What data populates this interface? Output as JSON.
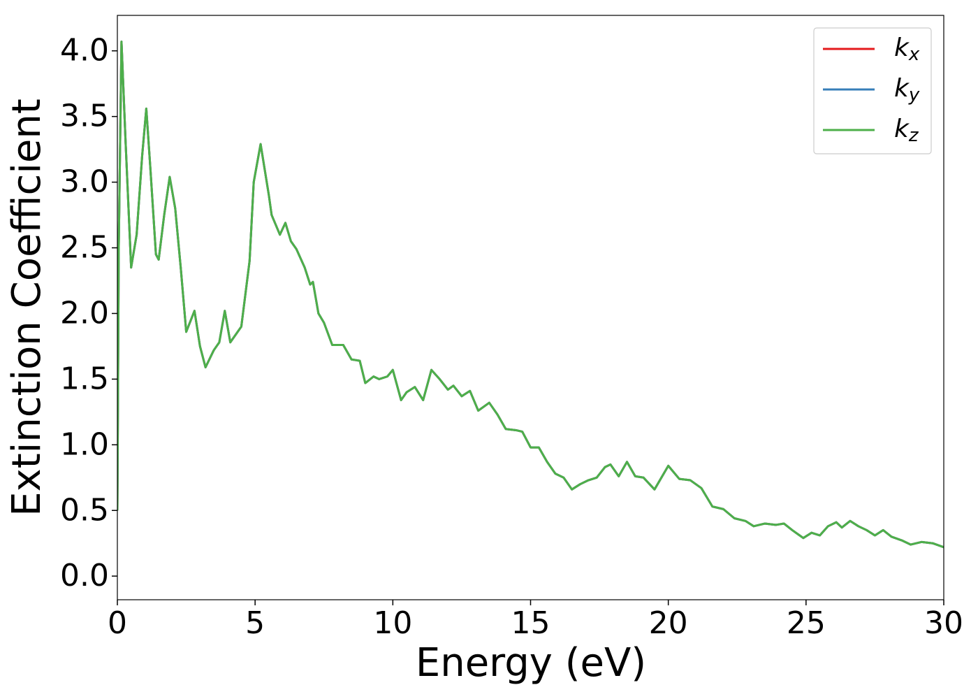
{
  "chart_data": {
    "type": "line",
    "xlabel": "Energy (eV)",
    "ylabel": "Extinction Coefficient",
    "x": [
      0,
      0.05,
      0.15,
      0.3,
      0.5,
      0.7,
      0.9,
      1.05,
      1.2,
      1.4,
      1.5,
      1.7,
      1.9,
      2.1,
      2.3,
      2.5,
      2.8,
      3.0,
      3.2,
      3.5,
      3.7,
      3.9,
      4.1,
      4.5,
      4.8,
      4.95,
      5.2,
      5.5,
      5.6,
      5.9,
      6.1,
      6.3,
      6.5,
      6.8,
      7.0,
      7.1,
      7.3,
      7.5,
      7.8,
      8.2,
      8.5,
      8.8,
      9.0,
      9.3,
      9.5,
      9.8,
      10.0,
      10.3,
      10.5,
      10.8,
      11.1,
      11.4,
      11.7,
      12.0,
      12.2,
      12.5,
      12.8,
      13.1,
      13.5,
      13.8,
      14.1,
      14.5,
      14.7,
      15.0,
      15.3,
      15.6,
      15.9,
      16.2,
      16.5,
      16.8,
      17.1,
      17.4,
      17.7,
      17.9,
      18.2,
      18.5,
      18.8,
      19.1,
      19.5,
      20.0,
      20.4,
      20.8,
      21.2,
      21.6,
      22.0,
      22.4,
      22.8,
      23.1,
      23.5,
      23.9,
      24.2,
      24.5,
      24.9,
      25.2,
      25.5,
      25.8,
      26.1,
      26.3,
      26.6,
      26.9,
      27.2,
      27.5,
      27.8,
      28.1,
      28.5,
      28.8,
      29.2,
      29.6,
      30.0
    ],
    "series": [
      {
        "name": "kx",
        "color": "#e41a1c",
        "values": [
          0.5,
          2.5,
          4.07,
          3.3,
          2.35,
          2.6,
          3.2,
          3.56,
          3.1,
          2.45,
          2.41,
          2.75,
          3.04,
          2.8,
          2.35,
          1.86,
          2.02,
          1.75,
          1.59,
          1.72,
          1.78,
          2.02,
          1.78,
          1.9,
          2.4,
          3.0,
          3.29,
          2.9,
          2.75,
          2.6,
          2.69,
          2.55,
          2.49,
          2.35,
          2.22,
          2.24,
          2.0,
          1.93,
          1.76,
          1.76,
          1.65,
          1.64,
          1.47,
          1.52,
          1.5,
          1.52,
          1.57,
          1.34,
          1.4,
          1.44,
          1.34,
          1.57,
          1.5,
          1.42,
          1.45,
          1.37,
          1.41,
          1.26,
          1.32,
          1.23,
          1.12,
          1.11,
          1.1,
          0.98,
          0.98,
          0.87,
          0.78,
          0.75,
          0.66,
          0.7,
          0.73,
          0.75,
          0.83,
          0.85,
          0.76,
          0.87,
          0.76,
          0.75,
          0.66,
          0.84,
          0.74,
          0.73,
          0.67,
          0.53,
          0.51,
          0.44,
          0.42,
          0.38,
          0.4,
          0.39,
          0.4,
          0.35,
          0.29,
          0.33,
          0.31,
          0.38,
          0.41,
          0.37,
          0.42,
          0.38,
          0.35,
          0.31,
          0.35,
          0.3,
          0.27,
          0.24,
          0.26,
          0.25,
          0.22
        ]
      },
      {
        "name": "ky",
        "color": "#377eb8",
        "values": [
          0.5,
          2.5,
          4.07,
          3.3,
          2.35,
          2.6,
          3.2,
          3.56,
          3.1,
          2.45,
          2.41,
          2.75,
          3.04,
          2.8,
          2.35,
          1.86,
          2.02,
          1.75,
          1.59,
          1.72,
          1.78,
          2.02,
          1.78,
          1.9,
          2.4,
          3.0,
          3.29,
          2.9,
          2.75,
          2.6,
          2.69,
          2.55,
          2.49,
          2.35,
          2.22,
          2.24,
          2.0,
          1.93,
          1.76,
          1.76,
          1.65,
          1.64,
          1.47,
          1.52,
          1.5,
          1.52,
          1.57,
          1.34,
          1.4,
          1.44,
          1.34,
          1.57,
          1.5,
          1.42,
          1.45,
          1.37,
          1.41,
          1.26,
          1.32,
          1.23,
          1.12,
          1.11,
          1.1,
          0.98,
          0.98,
          0.87,
          0.78,
          0.75,
          0.66,
          0.7,
          0.73,
          0.75,
          0.83,
          0.85,
          0.76,
          0.87,
          0.76,
          0.75,
          0.66,
          0.84,
          0.74,
          0.73,
          0.67,
          0.53,
          0.51,
          0.44,
          0.42,
          0.38,
          0.4,
          0.39,
          0.4,
          0.35,
          0.29,
          0.33,
          0.31,
          0.38,
          0.41,
          0.37,
          0.42,
          0.38,
          0.35,
          0.31,
          0.35,
          0.3,
          0.27,
          0.24,
          0.26,
          0.25,
          0.22
        ]
      },
      {
        "name": "kz",
        "color": "#4daf4a",
        "values": [
          0.5,
          2.5,
          4.07,
          3.3,
          2.35,
          2.6,
          3.2,
          3.56,
          3.1,
          2.45,
          2.41,
          2.75,
          3.04,
          2.8,
          2.35,
          1.86,
          2.02,
          1.75,
          1.59,
          1.72,
          1.78,
          2.02,
          1.78,
          1.9,
          2.4,
          3.0,
          3.29,
          2.9,
          2.75,
          2.6,
          2.69,
          2.55,
          2.49,
          2.35,
          2.22,
          2.24,
          2.0,
          1.93,
          1.76,
          1.76,
          1.65,
          1.64,
          1.47,
          1.52,
          1.5,
          1.52,
          1.57,
          1.34,
          1.4,
          1.44,
          1.34,
          1.57,
          1.5,
          1.42,
          1.45,
          1.37,
          1.41,
          1.26,
          1.32,
          1.23,
          1.12,
          1.11,
          1.1,
          0.98,
          0.98,
          0.87,
          0.78,
          0.75,
          0.66,
          0.7,
          0.73,
          0.75,
          0.83,
          0.85,
          0.76,
          0.87,
          0.76,
          0.75,
          0.66,
          0.84,
          0.74,
          0.73,
          0.67,
          0.53,
          0.51,
          0.44,
          0.42,
          0.38,
          0.4,
          0.39,
          0.4,
          0.35,
          0.29,
          0.33,
          0.31,
          0.38,
          0.41,
          0.37,
          0.42,
          0.38,
          0.35,
          0.31,
          0.35,
          0.3,
          0.27,
          0.24,
          0.26,
          0.25,
          0.22
        ]
      }
    ],
    "xlim": [
      0,
      30
    ],
    "ylim": [
      -0.18,
      4.27
    ],
    "xticks": [
      0,
      5,
      10,
      15,
      20,
      25,
      30
    ],
    "yticks": [
      {
        "value": 0,
        "label": "0.0"
      },
      {
        "value": 0.5,
        "label": "0.5"
      },
      {
        "value": 1,
        "label": "1.0"
      },
      {
        "value": 1.5,
        "label": "1.5"
      },
      {
        "value": 2,
        "label": "2.0"
      },
      {
        "value": 2.5,
        "label": "2.5"
      },
      {
        "value": 3,
        "label": "3.0"
      },
      {
        "value": 3.5,
        "label": "3.5"
      },
      {
        "value": 4,
        "label": "4.0"
      }
    ],
    "grid": false,
    "legend": "upper right"
  }
}
